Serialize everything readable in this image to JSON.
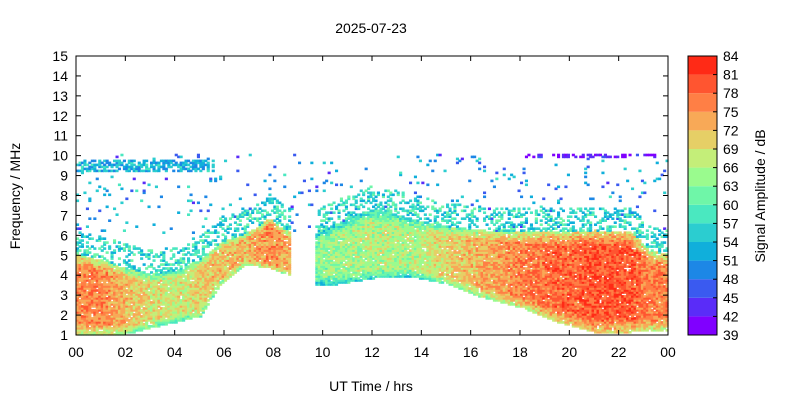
{
  "chart_data": {
    "type": "heatmap",
    "title": "2025-07-23",
    "xlabel": "UT Time / hrs",
    "ylabel": "Frequency / MHz",
    "colorbar_label": "Signal Amplitude / dB",
    "xlim": [
      0,
      24
    ],
    "ylim": [
      1,
      15
    ],
    "x_ticks": [
      "00",
      "02",
      "04",
      "06",
      "08",
      "10",
      "12",
      "14",
      "16",
      "18",
      "20",
      "22",
      "00"
    ],
    "y_ticks": [
      "1",
      "2",
      "3",
      "4",
      "5",
      "6",
      "7",
      "8",
      "9",
      "10",
      "11",
      "12",
      "13",
      "14",
      "15"
    ],
    "colorbar_ticks": [
      "39",
      "42",
      "45",
      "48",
      "51",
      "54",
      "57",
      "60",
      "63",
      "66",
      "69",
      "72",
      "75",
      "78",
      "81",
      "84"
    ],
    "colorbar_range": [
      39,
      84
    ],
    "colorbar_colors": [
      "#8000ff",
      "#5a2cf8",
      "#3a5af0",
      "#1d87e6",
      "#10afdb",
      "#2bcdd0",
      "#4ae8c0",
      "#6ff6a8",
      "#9afb8e",
      "#c4ee79",
      "#e6cf66",
      "#f8a957",
      "#ff7f45",
      "#ff5530",
      "#ff2a16",
      "#ff0000"
    ],
    "grid": false,
    "band_profile": {
      "description_fields": [
        "ut_hour",
        "low_mhz",
        "high_mhz",
        "peak_db"
      ],
      "samples": [
        [
          0,
          1.0,
          5.0,
          80
        ],
        [
          1,
          1.0,
          4.7,
          80
        ],
        [
          2,
          1.0,
          4.3,
          76
        ],
        [
          3,
          1.3,
          4.0,
          73
        ],
        [
          4,
          1.6,
          4.2,
          72
        ],
        [
          5,
          1.9,
          4.8,
          74
        ],
        [
          5.8,
          3.5,
          5.6,
          76
        ],
        [
          6.8,
          4.5,
          6.0,
          76
        ],
        [
          7.8,
          4.3,
          6.8,
          80
        ],
        [
          8.5,
          4.0,
          6.2,
          78
        ],
        [
          9.5,
          3.5,
          6.0,
          66
        ],
        [
          10.5,
          3.5,
          6.5,
          69
        ],
        [
          12,
          3.8,
          7.3,
          70
        ],
        [
          13.5,
          3.9,
          6.8,
          70
        ],
        [
          15,
          3.5,
          6.4,
          74
        ],
        [
          16.5,
          2.8,
          6.2,
          77
        ],
        [
          18,
          2.3,
          6.1,
          80
        ],
        [
          19.5,
          1.6,
          6.1,
          82
        ],
        [
          21,
          1.1,
          6.2,
          83
        ],
        [
          22.5,
          1.1,
          6.1,
          83
        ],
        [
          23.2,
          1.2,
          5.2,
          80
        ],
        [
          24,
          1.2,
          5.0,
          80
        ]
      ]
    }
  }
}
